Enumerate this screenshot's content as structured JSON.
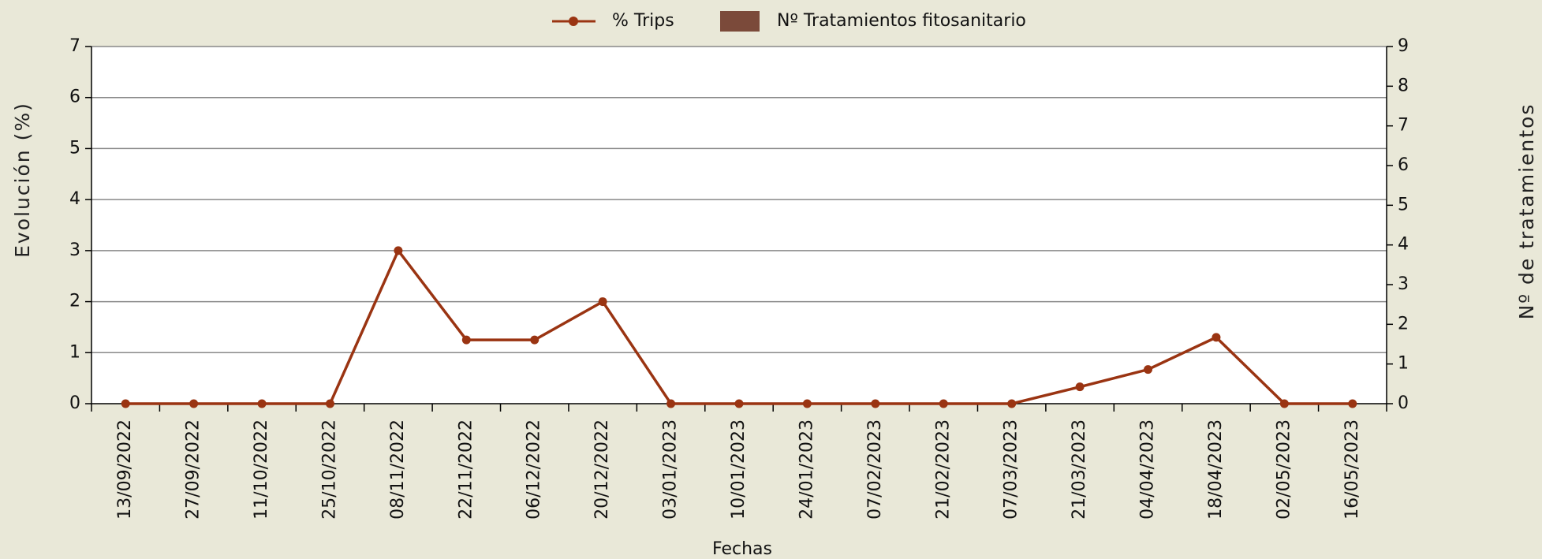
{
  "chart_data": {
    "type": "line",
    "categories": [
      "13/09/2022",
      "27/09/2022",
      "11/10/2022",
      "25/10/2022",
      "08/11/2022",
      "22/11/2022",
      "06/12/2022",
      "20/12/2022",
      "03/01/2023",
      "10/01/2023",
      "24/01/2023",
      "07/02/2023",
      "21/02/2023",
      "07/03/2023",
      "21/03/2023",
      "04/04/2023",
      "18/04/2023",
      "02/05/2023",
      "16/05/2023"
    ],
    "series": [
      {
        "name": "% Trips",
        "color": "#9a3412",
        "type": "line",
        "values": [
          0,
          0,
          0,
          0,
          3,
          1.25,
          1.25,
          2,
          0,
          0,
          0,
          0,
          0,
          0,
          0.33,
          0.67,
          1.3,
          0,
          0
        ]
      },
      {
        "name": "Nº Tratamientos fitosanitario",
        "color": "#7b4a3a",
        "type": "bar",
        "axis": "y2",
        "values": [
          0,
          0,
          0,
          0,
          0,
          0,
          0,
          0,
          0,
          0,
          0,
          0,
          0,
          0,
          0,
          0,
          0,
          0,
          0
        ]
      }
    ],
    "ylabel": "Evolución (%)",
    "y2label": "Nº de tratamientos",
    "xlabel": "Fechas",
    "ylim": [
      0,
      7
    ],
    "yticks": [
      0,
      1,
      2,
      3,
      4,
      5,
      6,
      7
    ],
    "y2lim": [
      0,
      9
    ],
    "y2ticks": [
      0,
      1,
      2,
      3,
      4,
      5,
      6,
      7,
      8,
      9
    ],
    "grid": true,
    "legend": "top"
  }
}
